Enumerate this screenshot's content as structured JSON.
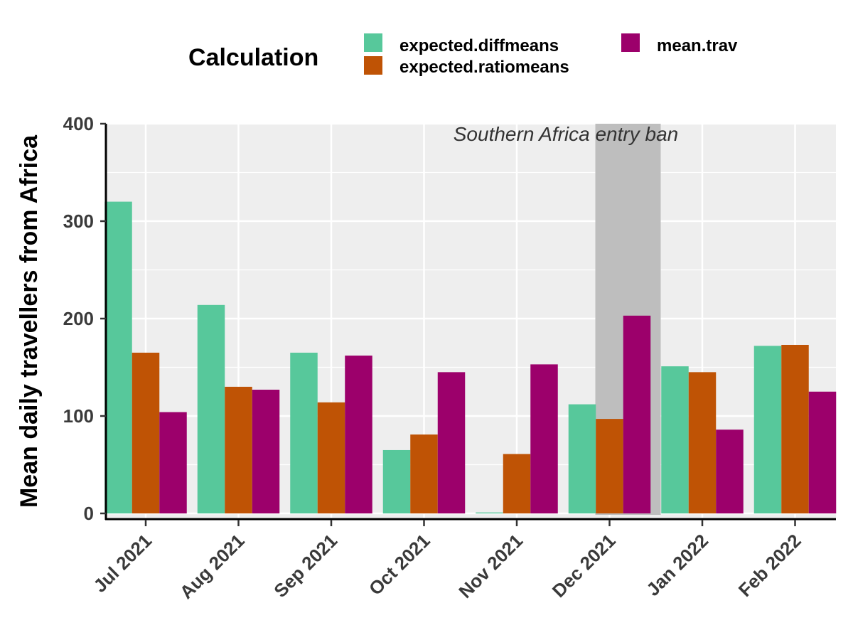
{
  "chart_data": {
    "type": "bar",
    "categories": [
      "Jul 2021",
      "Aug 2021",
      "Sep 2021",
      "Oct 2021",
      "Nov 2021",
      "Dec 2021",
      "Jan 2022",
      "Feb 2022"
    ],
    "series": [
      {
        "name": "expected.diffmeans",
        "color": "#57c89b",
        "values": [
          320,
          214,
          165,
          65,
          1,
          112,
          151,
          172
        ]
      },
      {
        "name": "expected.ratiomeans",
        "color": "#bf5305",
        "values": [
          165,
          130,
          114,
          81,
          61,
          97,
          145,
          173
        ]
      },
      {
        "name": "mean.trav",
        "color": "#9c006b",
        "values": [
          104,
          127,
          162,
          145,
          153,
          203,
          86,
          125
        ]
      }
    ],
    "legend_title": "Calculation",
    "legend_position": "top",
    "ylabel": "Mean daily travellers from Africa",
    "xlabel": "",
    "ylim": [
      0,
      400
    ],
    "yticks": [
      0,
      100,
      200,
      300,
      400
    ],
    "grid": true,
    "panel_background": "#eeeeee",
    "shaded_region": {
      "label": "Southern Africa entry ban",
      "color": "#bebebe"
    }
  }
}
